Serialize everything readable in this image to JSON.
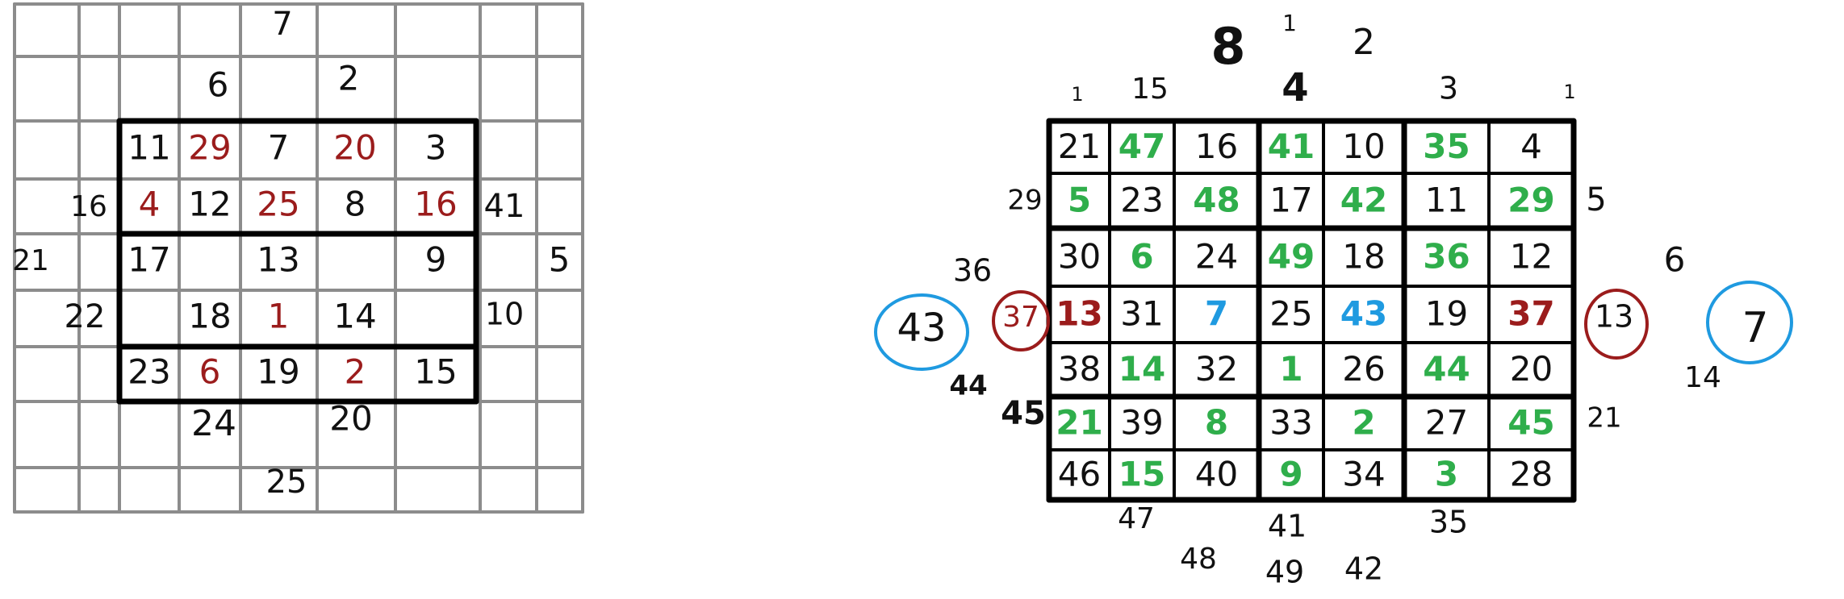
{
  "colors": {
    "grid_light": "#8c8c8c",
    "grid_bold": "#000000",
    "ink": "#111111",
    "red": "#9b1c1c",
    "green": "#2fae4b",
    "blue": "#1f9ae0",
    "bg": "#ffffff"
  },
  "left_puzzle": {
    "top_outside": [
      "7",
      "6",
      "2"
    ],
    "left_outside": [
      "16",
      "21",
      "22"
    ],
    "right_outside": [
      "41",
      "5",
      "10"
    ],
    "bottom_outside": [
      "24",
      "20",
      "25"
    ],
    "grid": [
      [
        {
          "t": "11",
          "c": "ink"
        },
        {
          "t": "29",
          "c": "red"
        },
        {
          "t": "7",
          "c": "ink"
        },
        {
          "t": "20",
          "c": "red"
        },
        {
          "t": "3",
          "c": "ink"
        }
      ],
      [
        {
          "t": "4",
          "c": "red"
        },
        {
          "t": "12",
          "c": "ink"
        },
        {
          "t": "25",
          "c": "red"
        },
        {
          "t": "8",
          "c": "ink"
        },
        {
          "t": "16",
          "c": "red"
        }
      ],
      [
        {
          "t": "17",
          "c": "ink"
        },
        {
          "t": "",
          "c": "ink"
        },
        {
          "t": "13",
          "c": "ink"
        },
        {
          "t": "",
          "c": "ink"
        },
        {
          "t": "9",
          "c": "ink"
        }
      ],
      [
        {
          "t": "",
          "c": "ink"
        },
        {
          "t": "18",
          "c": "ink"
        },
        {
          "t": "1",
          "c": "red"
        },
        {
          "t": "14",
          "c": "ink"
        },
        {
          "t": "",
          "c": "ink"
        }
      ],
      [
        {
          "t": "23",
          "c": "ink"
        },
        {
          "t": "6",
          "c": "red"
        },
        {
          "t": "19",
          "c": "ink"
        },
        {
          "t": "2",
          "c": "red"
        },
        {
          "t": "15",
          "c": "ink"
        }
      ]
    ]
  },
  "right_puzzle": {
    "top_outside": [
      "8",
      "1",
      "2",
      "1",
      "15",
      "4",
      "3",
      "1"
    ],
    "left_outside": [
      "29",
      "36",
      "37",
      "43",
      "44",
      "45"
    ],
    "right_outside": [
      "5",
      "6",
      "13",
      "7",
      "14",
      "21"
    ],
    "bottom_outside": [
      "47",
      "41",
      "35",
      "48",
      "49",
      "42"
    ],
    "grid": [
      [
        {
          "t": "21",
          "c": "ink"
        },
        {
          "t": "47",
          "c": "green"
        },
        {
          "t": "16",
          "c": "ink"
        },
        {
          "t": "41",
          "c": "green"
        },
        {
          "t": "10",
          "c": "ink"
        },
        {
          "t": "35",
          "c": "green"
        },
        {
          "t": "4",
          "c": "ink"
        }
      ],
      [
        {
          "t": "5",
          "c": "green"
        },
        {
          "t": "23",
          "c": "ink"
        },
        {
          "t": "48",
          "c": "green"
        },
        {
          "t": "17",
          "c": "ink"
        },
        {
          "t": "42",
          "c": "green"
        },
        {
          "t": "11",
          "c": "ink"
        },
        {
          "t": "29",
          "c": "green"
        }
      ],
      [
        {
          "t": "30",
          "c": "ink"
        },
        {
          "t": "6",
          "c": "green"
        },
        {
          "t": "24",
          "c": "ink"
        },
        {
          "t": "49",
          "c": "green"
        },
        {
          "t": "18",
          "c": "ink"
        },
        {
          "t": "36",
          "c": "green"
        },
        {
          "t": "12",
          "c": "ink"
        }
      ],
      [
        {
          "t": "13",
          "c": "red"
        },
        {
          "t": "31",
          "c": "ink"
        },
        {
          "t": "7",
          "c": "blue"
        },
        {
          "t": "25",
          "c": "ink"
        },
        {
          "t": "43",
          "c": "blue"
        },
        {
          "t": "19",
          "c": "ink"
        },
        {
          "t": "37",
          "c": "red"
        }
      ],
      [
        {
          "t": "38",
          "c": "ink"
        },
        {
          "t": "14",
          "c": "green"
        },
        {
          "t": "32",
          "c": "ink"
        },
        {
          "t": "1",
          "c": "green"
        },
        {
          "t": "26",
          "c": "ink"
        },
        {
          "t": "44",
          "c": "green"
        },
        {
          "t": "20",
          "c": "ink"
        }
      ],
      [
        {
          "t": "21",
          "c": "green"
        },
        {
          "t": "39",
          "c": "ink"
        },
        {
          "t": "8",
          "c": "green"
        },
        {
          "t": "33",
          "c": "ink"
        },
        {
          "t": "2",
          "c": "green"
        },
        {
          "t": "27",
          "c": "ink"
        },
        {
          "t": "45",
          "c": "green"
        }
      ],
      [
        {
          "t": "46",
          "c": "ink"
        },
        {
          "t": "15",
          "c": "green"
        },
        {
          "t": "40",
          "c": "ink"
        },
        {
          "t": "9",
          "c": "green"
        },
        {
          "t": "34",
          "c": "ink"
        },
        {
          "t": "3",
          "c": "green"
        },
        {
          "t": "28",
          "c": "ink"
        }
      ]
    ]
  }
}
